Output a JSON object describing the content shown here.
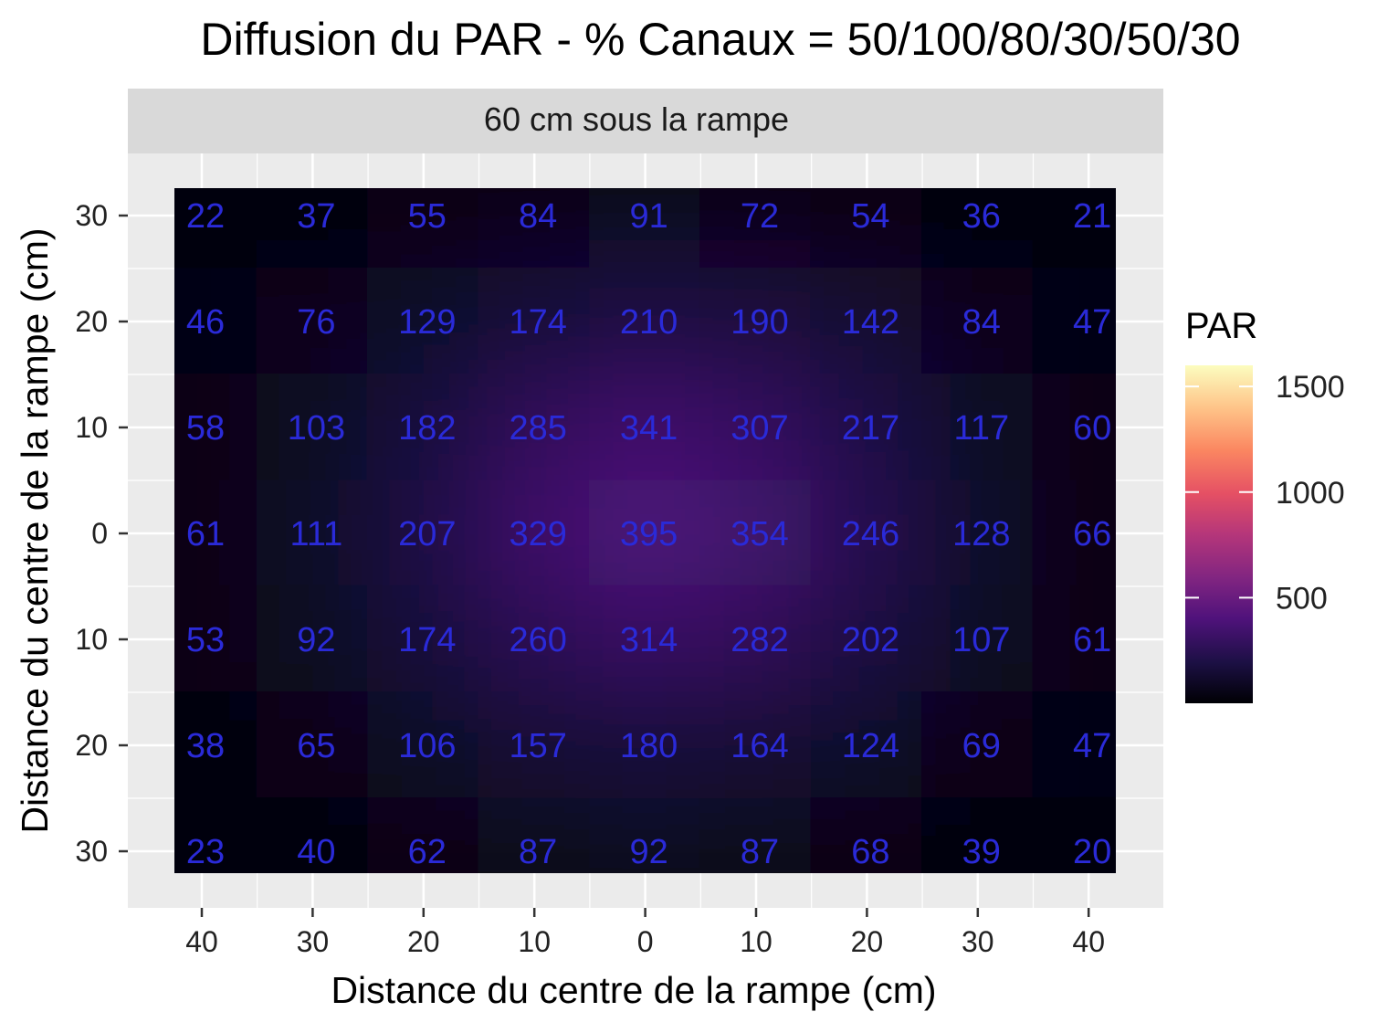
{
  "chart_data": {
    "type": "heatmap",
    "title": "Diffusion du PAR - % Canaux = 50/100/80/30/50/30",
    "facet_label": "60 cm sous la rampe",
    "xlabel": "Distance du centre de la rampe (cm)",
    "ylabel": "Distance du centre de la rampe (cm)",
    "x": [
      -40,
      -30,
      -20,
      -10,
      0,
      10,
      20,
      30,
      40
    ],
    "x_tick_labels": [
      "40",
      "30",
      "20",
      "10",
      "0",
      "10",
      "20",
      "30",
      "40"
    ],
    "y": [
      30,
      20,
      10,
      0,
      -10,
      -20,
      -30
    ],
    "y_tick_labels": [
      "30",
      "20",
      "10",
      "0",
      "10",
      "20",
      "30"
    ],
    "values": [
      [
        22,
        37,
        55,
        84,
        91,
        72,
        54,
        36,
        21
      ],
      [
        46,
        76,
        129,
        174,
        210,
        190,
        142,
        84,
        47
      ],
      [
        58,
        103,
        182,
        285,
        341,
        307,
        217,
        117,
        60
      ],
      [
        61,
        111,
        207,
        329,
        395,
        354,
        246,
        128,
        66
      ],
      [
        53,
        92,
        174,
        260,
        314,
        282,
        202,
        107,
        61
      ],
      [
        38,
        65,
        106,
        157,
        180,
        164,
        124,
        69,
        47
      ],
      [
        23,
        40,
        62,
        87,
        92,
        87,
        68,
        39,
        20
      ]
    ],
    "legend": {
      "title": "PAR",
      "position": "right",
      "colormap": "magma",
      "range": [
        0,
        1600
      ],
      "ticks": [
        500,
        1000,
        1500
      ],
      "tick_labels": [
        "500",
        "1000",
        "1500"
      ]
    },
    "label_color": "#2a2ad8",
    "panel_background": "#ebebeb",
    "strip_background": "#d9d9d9",
    "grid": true
  }
}
